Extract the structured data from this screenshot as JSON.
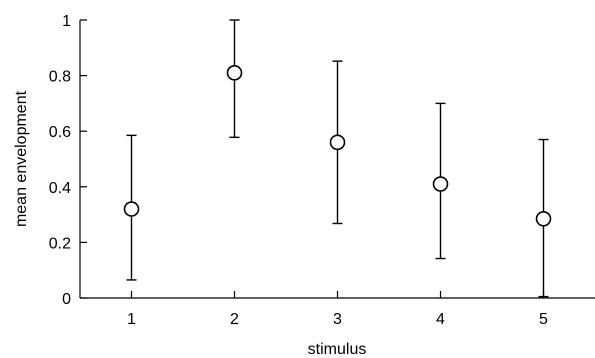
{
  "chart_data": {
    "type": "scatter",
    "title": "",
    "xlabel": "stimulus",
    "ylabel": "mean envelopment",
    "xlim": [
      0.5,
      5.5
    ],
    "ylim": [
      0,
      1
    ],
    "x_ticks": [
      1,
      2,
      3,
      4,
      5
    ],
    "x_tick_labels": [
      "1",
      "2",
      "3",
      "4",
      "5"
    ],
    "y_ticks": [
      0,
      0.2,
      0.4,
      0.6,
      0.8,
      1
    ],
    "y_tick_labels": [
      "0",
      "0.2",
      "0.4",
      "0.6",
      "0.8",
      "1"
    ],
    "grid": false,
    "marker": "open-circle",
    "points": [
      {
        "x": 1,
        "y": 0.32,
        "err_low": 0.065,
        "err_high": 0.585
      },
      {
        "x": 2,
        "y": 0.81,
        "err_low": 0.578,
        "err_high": 1.0
      },
      {
        "x": 3,
        "y": 0.56,
        "err_low": 0.268,
        "err_high": 0.852
      },
      {
        "x": 4,
        "y": 0.41,
        "err_low": 0.142,
        "err_high": 0.7
      },
      {
        "x": 5,
        "y": 0.285,
        "err_low": 0.005,
        "err_high": 0.57
      }
    ],
    "colors": {
      "marker": "#000000",
      "axis": "#000000"
    }
  }
}
